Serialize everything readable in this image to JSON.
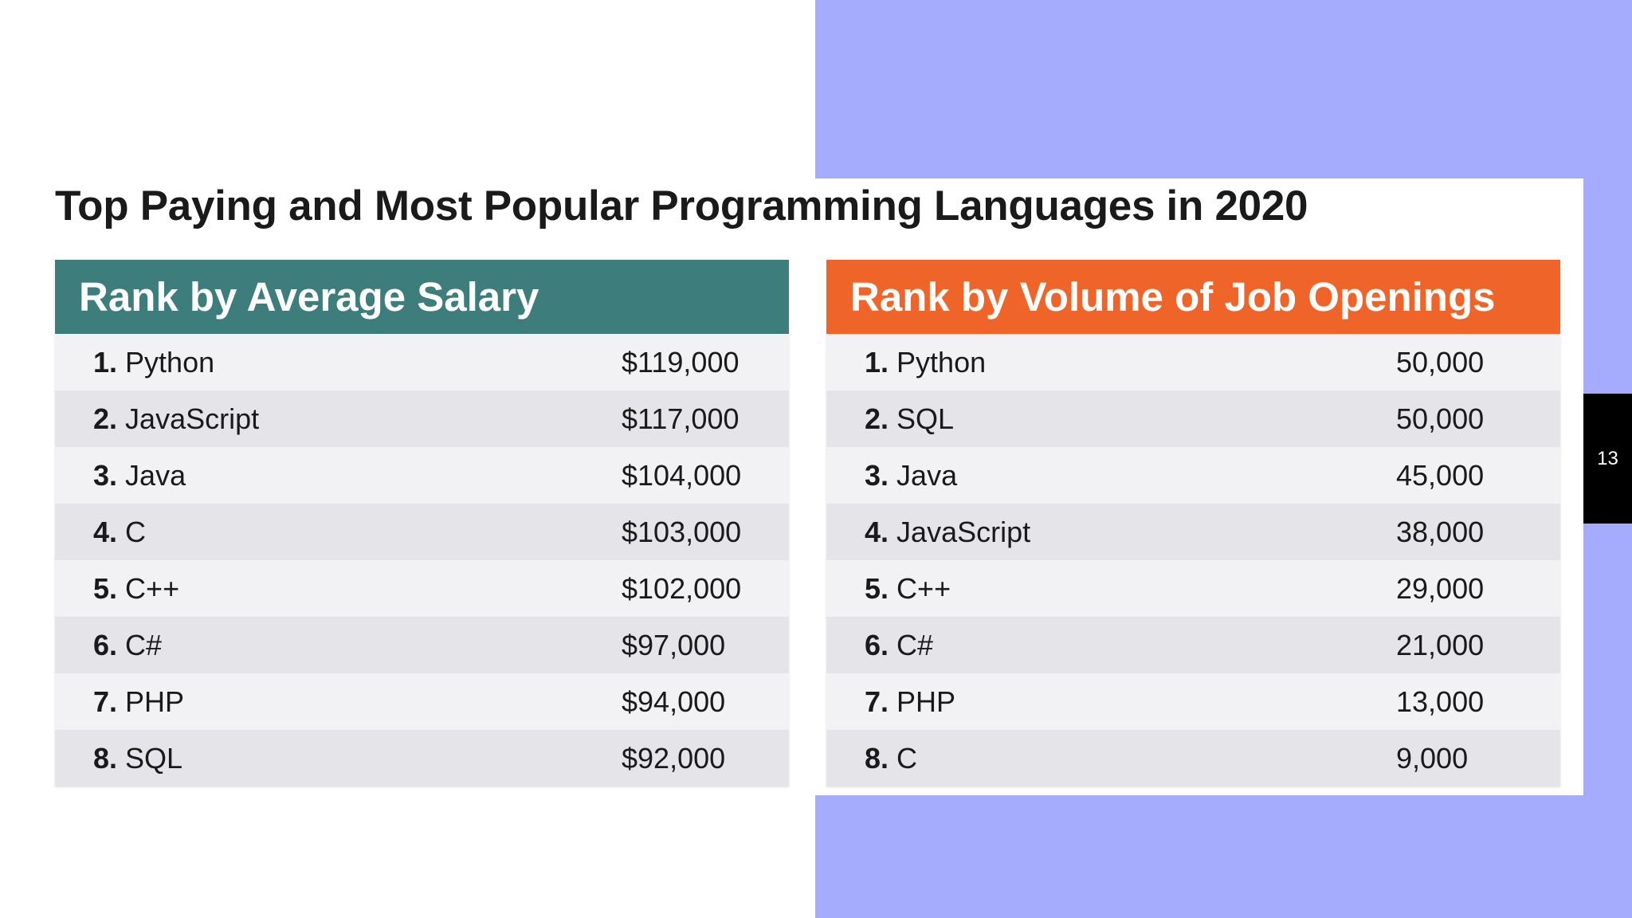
{
  "title": "Top Paying and Most Popular Programming Languages in 2020",
  "colors": {
    "salary_header": "#3d7e7d",
    "jobs_header": "#ef6428",
    "accent_block": "#a6acfd",
    "page_badge": "#000000"
  },
  "salary_table": {
    "header": "Rank by Average Salary",
    "rows": [
      {
        "rank": "1.",
        "language": "Python",
        "value": "$119,000"
      },
      {
        "rank": "2.",
        "language": "JavaScript",
        "value": "$117,000"
      },
      {
        "rank": "3.",
        "language": "Java",
        "value": "$104,000"
      },
      {
        "rank": "4.",
        "language": "C",
        "value": "$103,000"
      },
      {
        "rank": "5.",
        "language": "C++",
        "value": "$102,000"
      },
      {
        "rank": "6.",
        "language": "C#",
        "value": "$97,000"
      },
      {
        "rank": "7.",
        "language": "PHP",
        "value": "$94,000"
      },
      {
        "rank": "8.",
        "language": "SQL",
        "value": "$92,000"
      }
    ]
  },
  "jobs_table": {
    "header": "Rank by Volume of Job Openings",
    "rows": [
      {
        "rank": "1.",
        "language": "Python",
        "value": "50,000"
      },
      {
        "rank": "2.",
        "language": "SQL",
        "value": "50,000"
      },
      {
        "rank": "3.",
        "language": "Java",
        "value": "45,000"
      },
      {
        "rank": "4.",
        "language": "JavaScript",
        "value": "38,000"
      },
      {
        "rank": "5.",
        "language": "C++",
        "value": "29,000"
      },
      {
        "rank": "6.",
        "language": "C#",
        "value": "21,000"
      },
      {
        "rank": "7.",
        "language": "PHP",
        "value": "13,000"
      },
      {
        "rank": "8.",
        "language": "C",
        "value": "9,000"
      }
    ]
  },
  "page_number": "13"
}
